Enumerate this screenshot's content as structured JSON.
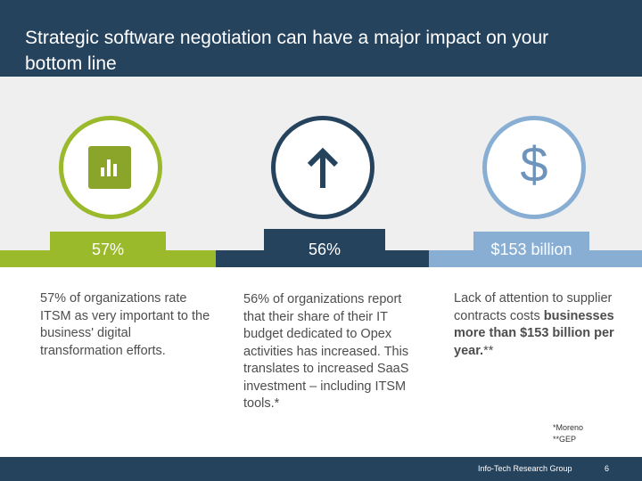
{
  "header": {
    "title": "Strategic software negotiation can have a major impact on your bottom line"
  },
  "columns": [
    {
      "icon": "bar-chart-icon",
      "accent": "#9ab92b",
      "stat": "57%",
      "description": "57% of organizations rate ITSM as very important to the business' digital transformation efforts."
    },
    {
      "icon": "up-arrow-icon",
      "accent": "#26435e",
      "stat": "56%",
      "description": "56% of organizations report that their share of their IT budget dedicated to Opex activities has increased. This translates to increased SaaS investment – including ITSM tools.*"
    },
    {
      "icon": "dollar-icon",
      "icon_glyph": "$",
      "accent": "#88aed3",
      "stat": "$153 billion",
      "description_pre": "Lack of attention to supplier contracts costs ",
      "description_bold": "businesses more than $153 billion per year.",
      "description_post": "**"
    }
  ],
  "footnotes": {
    "line1": "*Moreno",
    "line2": "**GEP"
  },
  "footer": {
    "source": "Info-Tech Research Group",
    "page": "6"
  },
  "colors": {
    "navy": "#26435e",
    "green": "#9ab92b",
    "light_blue": "#88aed3",
    "band": "#efefef"
  }
}
